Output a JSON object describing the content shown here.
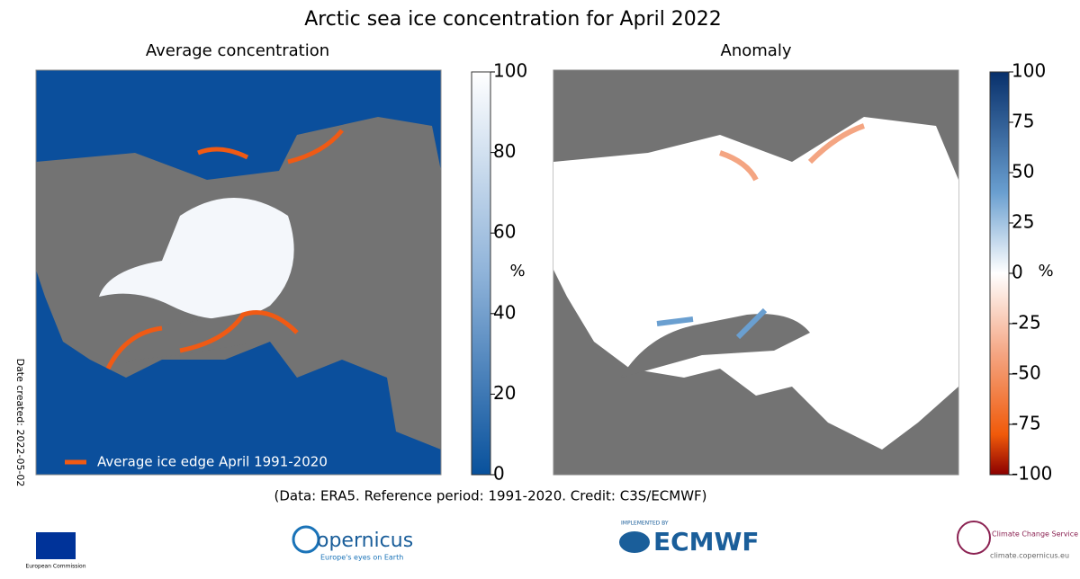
{
  "title": "Arctic sea ice concentration for April 2022",
  "panels": [
    {
      "title": "Average concentration",
      "colorbar": {
        "label": "%",
        "lim": [
          0,
          100
        ],
        "ticks": [
          0,
          20,
          40,
          60,
          80,
          100
        ]
      },
      "legend": "Average ice edge April 1991-2020"
    },
    {
      "title": "Anomaly",
      "colorbar": {
        "label": "%",
        "lim": [
          -100,
          100
        ],
        "ticks": [
          -100,
          -75,
          -50,
          -25,
          0,
          25,
          50,
          75,
          100
        ]
      }
    }
  ],
  "credit": "(Data: ERA5.  Reference period: 1991-2020.  Credit: C3S/ECMWF)",
  "date_created": "Date created: 2022-05-02",
  "logos": {
    "commission": "European Commission",
    "copernicus": "opernicus",
    "copernicus_tagline": "Europe's eyes on Earth",
    "implemented_by": "IMPLEMENTED BY",
    "ecmwf": "ECMWF",
    "c3s": "Climate Change Service",
    "c3s_url": "climate.copernicus.eu"
  }
}
